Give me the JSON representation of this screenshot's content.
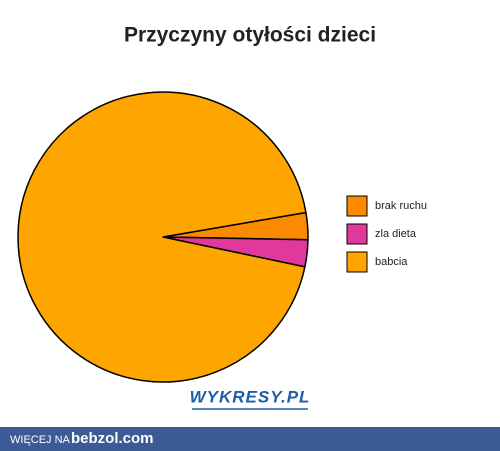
{
  "chart_data": {
    "type": "pie",
    "title": "Przyczyny otyłości dzieci",
    "categories": [
      "brak ruchu",
      "zla dieta",
      "babcia"
    ],
    "values": [
      3,
      3,
      94
    ],
    "colors": [
      "#fb8a00",
      "#e0399b",
      "#fea500"
    ],
    "legend": "right",
    "watermark": "WYKRESY.PL"
  },
  "footer": {
    "prefix": "WIĘCEJ NA",
    "site": "bebzol.com"
  }
}
